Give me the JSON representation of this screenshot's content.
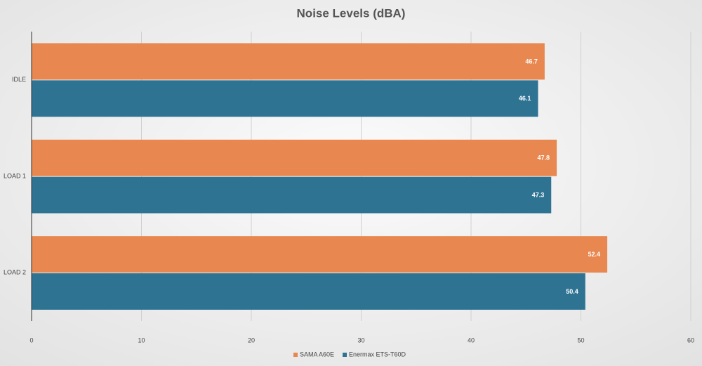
{
  "chart_data": {
    "type": "hbar",
    "title": "Noise Levels (dBA)",
    "categories": [
      "IDLE",
      "LOAD 1",
      "LOAD 2"
    ],
    "series": [
      {
        "name": "SAMA A60E",
        "color": "#e8874f",
        "values": [
          46.7,
          47.8,
          52.4
        ]
      },
      {
        "name": "Enermax ETS-T60D",
        "color": "#2f7393",
        "values": [
          46.1,
          47.3,
          50.4
        ]
      }
    ],
    "xlim": [
      0,
      60
    ],
    "xticks": [
      0,
      10,
      20,
      30,
      40,
      50,
      60
    ],
    "grid": true,
    "legend": "bottom"
  }
}
